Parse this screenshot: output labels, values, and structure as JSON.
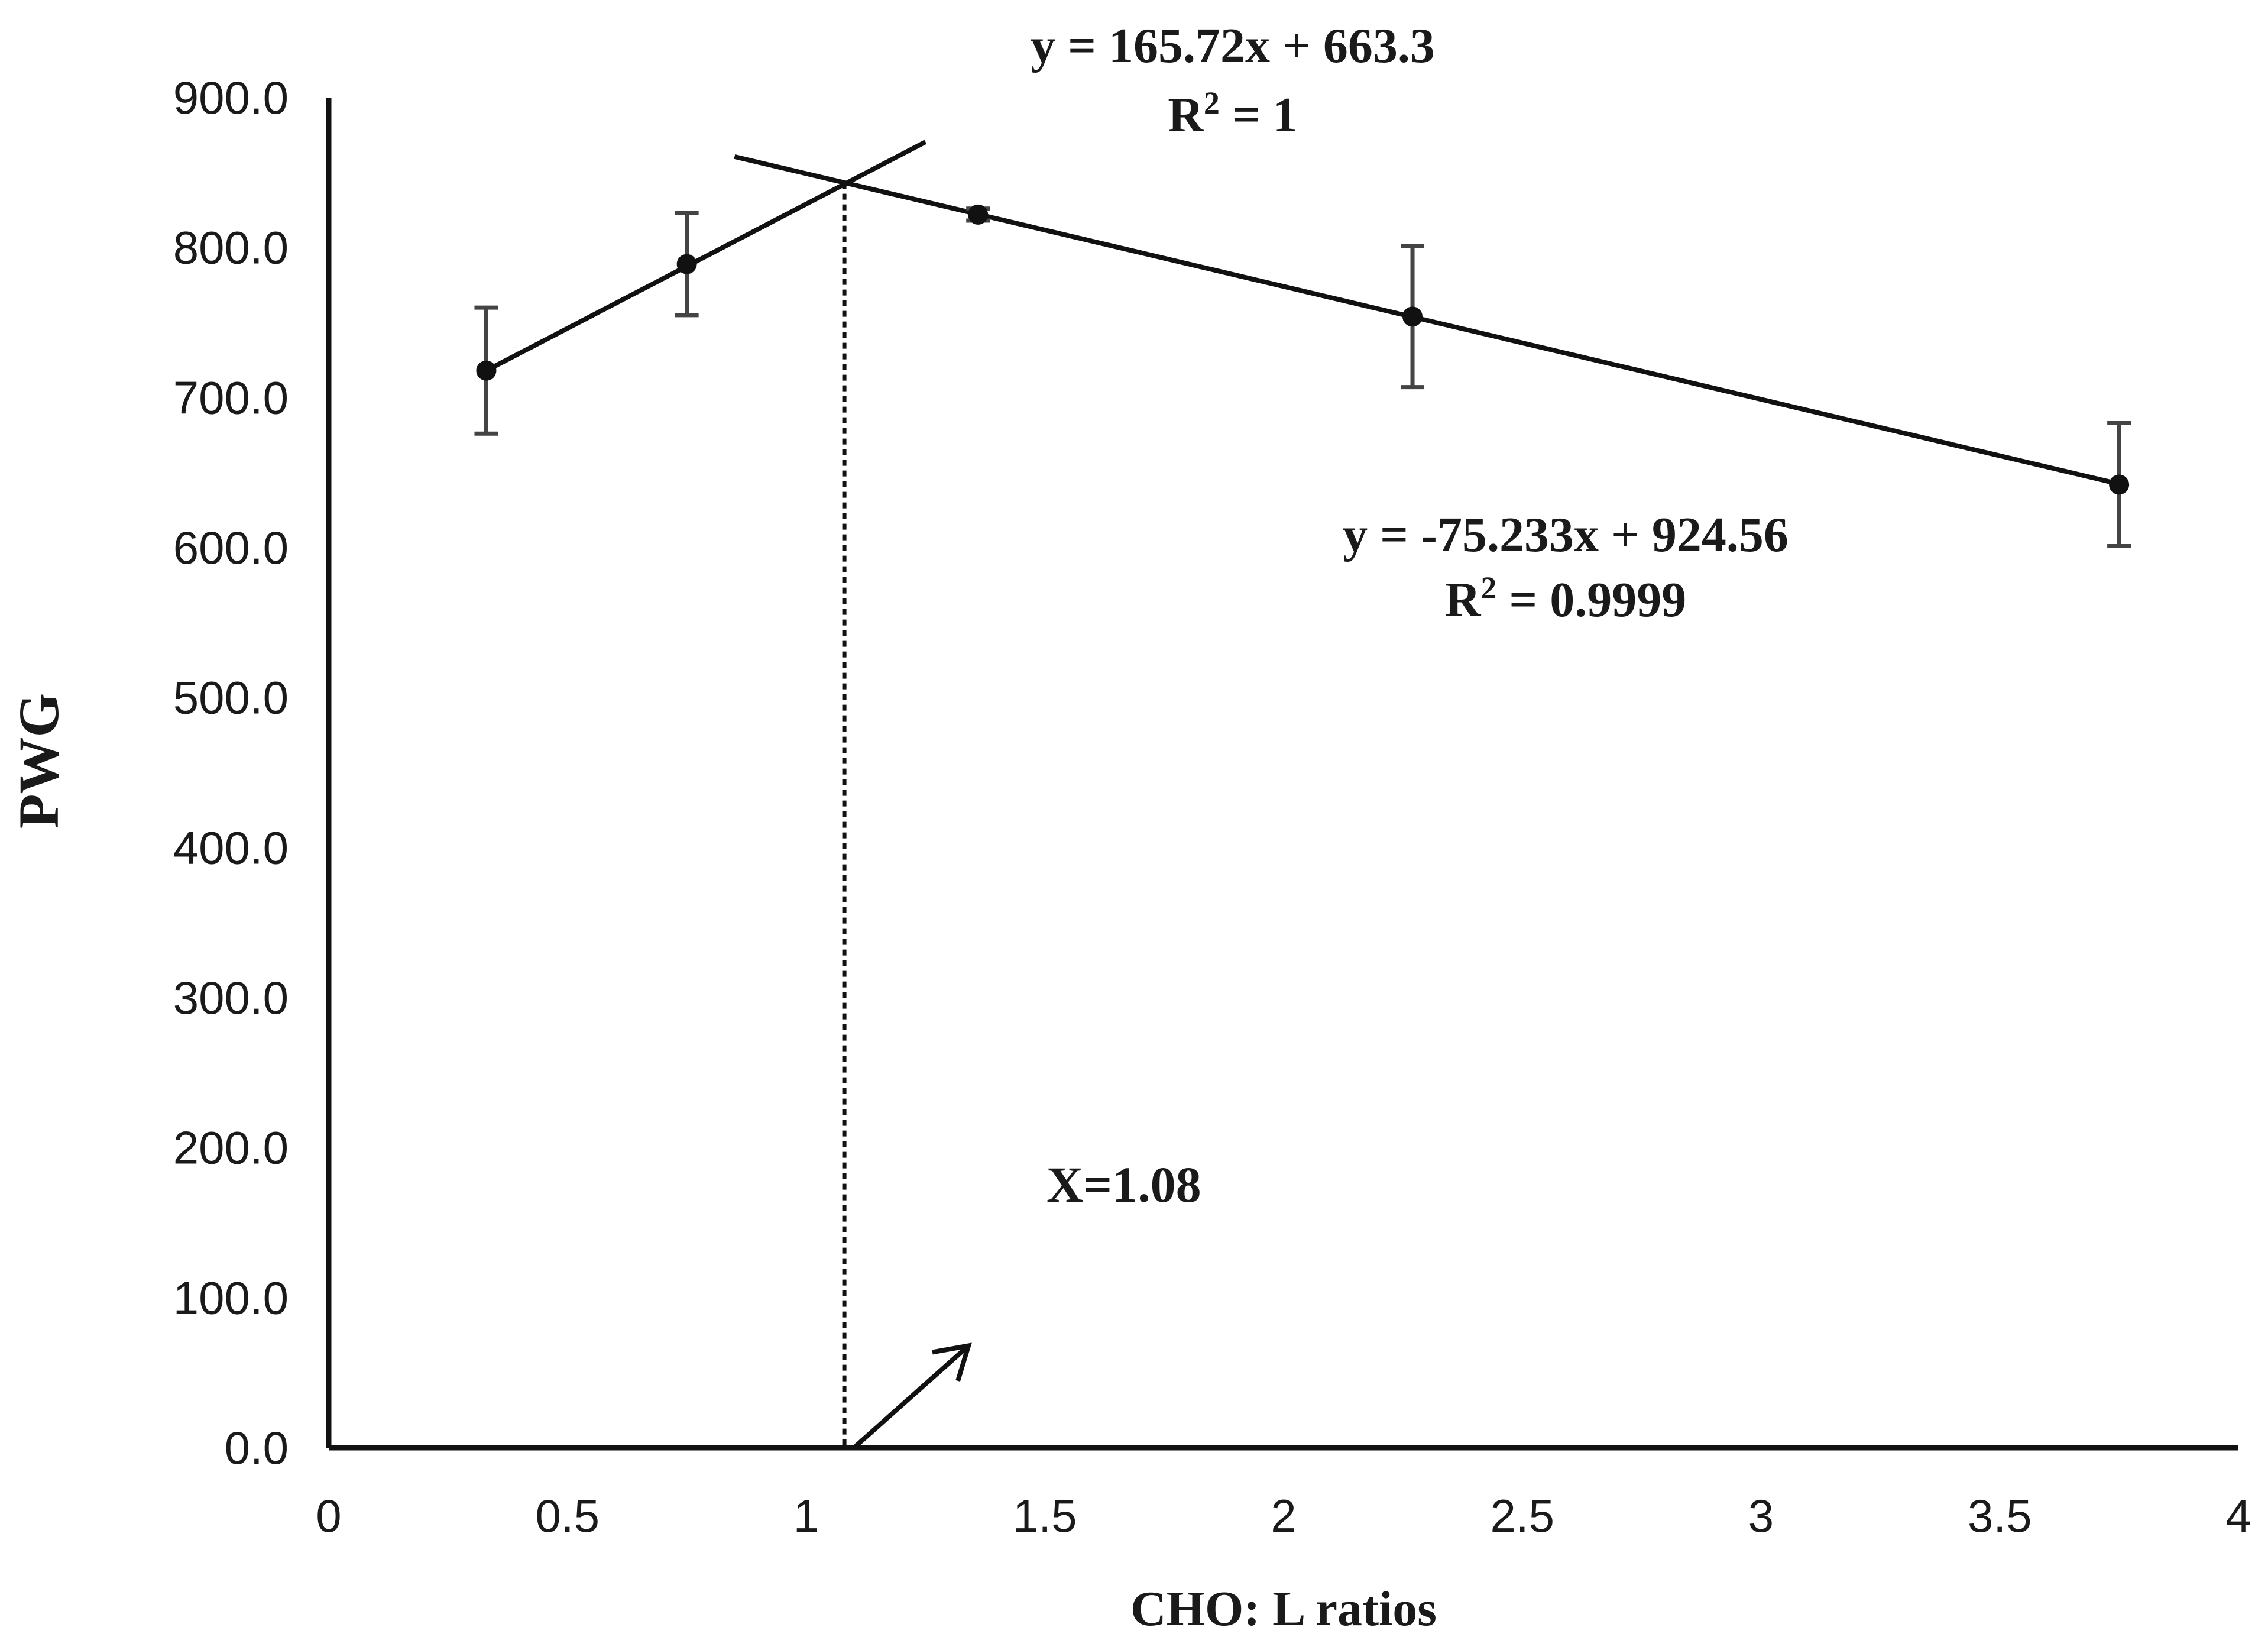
{
  "chart_data": {
    "type": "scatter",
    "xlabel": "CHO: L ratios",
    "ylabel": "PWG",
    "xlim": [
      0,
      4
    ],
    "ylim": [
      0,
      900
    ],
    "x_ticks": [
      "0",
      "0.5",
      "1",
      "1.5",
      "2",
      "2.5",
      "3",
      "3.5",
      "4"
    ],
    "y_ticks": [
      "0.0",
      "100.0",
      "200.0",
      "300.0",
      "400.0",
      "500.0",
      "600.0",
      "700.0",
      "800.0",
      "900.0"
    ],
    "grid": false,
    "legend": "none",
    "series": [
      {
        "points": [
          {
            "x": 0.33,
            "y": 718,
            "err": 42
          },
          {
            "x": 0.75,
            "y": 789,
            "err": 34
          },
          {
            "x": 1.36,
            "y": 822,
            "err": 4
          },
          {
            "x": 2.27,
            "y": 754,
            "err": 47
          },
          {
            "x": 3.75,
            "y": 642,
            "err": 41
          }
        ]
      }
    ],
    "trendlines": [
      {
        "slope": 165.72,
        "intercept": 663.3,
        "x_range": [
          0.33,
          1.25
        ],
        "equation": "y = 165.72x + 663.3",
        "r2_prefix": "R",
        "r2_value": " = 1"
      },
      {
        "slope": -75.233,
        "intercept": 924.56,
        "x_range": [
          0.85,
          3.75
        ],
        "equation": "y = -75.233x + 924.56",
        "r2_prefix": "R",
        "r2_value": " = 0.9999"
      }
    ],
    "r2_exponent": "2",
    "breakpoint": {
      "x": 1.08,
      "y": 843,
      "label": "X=1.08"
    },
    "arrow": {
      "from": [
        1.1,
        0
      ],
      "to": [
        1.34,
        68
      ]
    },
    "colors": {
      "line": "#111111",
      "errorbar": "#444444",
      "text": "#1a1a1a"
    }
  }
}
